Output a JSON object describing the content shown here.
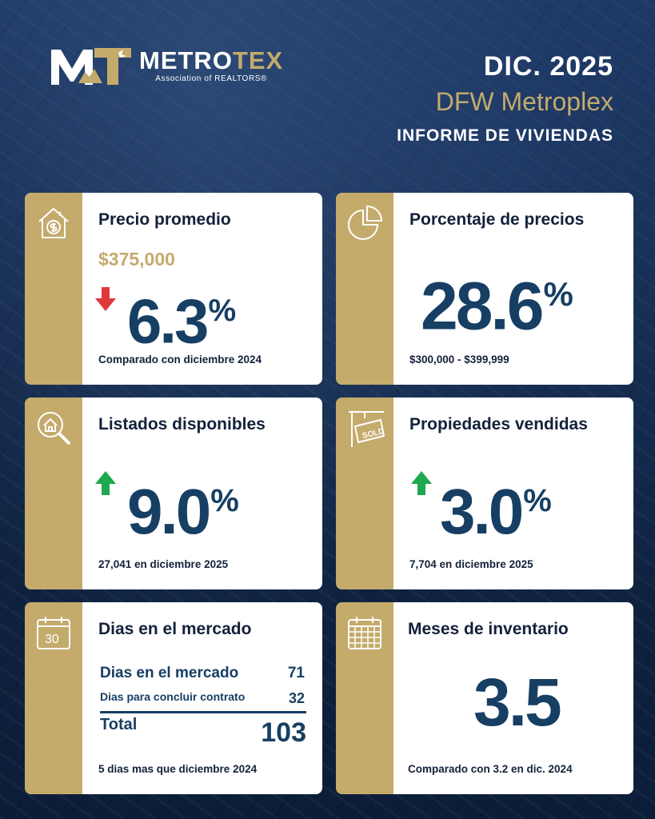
{
  "header": {
    "logo": {
      "mark": "MT",
      "name_a": "METRO",
      "name_b": "TEX",
      "sub": "Association of REALTORS®"
    },
    "date": "DIC. 2025",
    "region": "DFW Metroplex",
    "report": "INFORME DE VIVIENDAS"
  },
  "cards": {
    "avg_price": {
      "icon": "house-dollar-icon",
      "title": "Precio promedio",
      "price": "$375,000",
      "trend": "down",
      "value": "6.3",
      "unit": "%",
      "note": "Comparado con diciembre 2024"
    },
    "price_pct": {
      "icon": "pie-chart-icon",
      "title": "Porcentaje de precios",
      "value": "28.6",
      "unit": "%",
      "note": "$300,000 - $399,999"
    },
    "listings": {
      "icon": "magnifier-house-icon",
      "title": "Listados disponibles",
      "trend": "up",
      "value": "9.0",
      "unit": "%",
      "note": "27,041 en diciembre 2025"
    },
    "sold": {
      "icon": "sold-sign-icon",
      "sign_text": "SOLD",
      "title": "Propiedades vendidas",
      "trend": "up",
      "value": "3.0",
      "unit": "%",
      "note": "7,704 en diciembre 2025"
    },
    "dom": {
      "icon": "calendar-30-icon",
      "calendar_day": "30",
      "title": "Dias en el mercado",
      "row1_label": "Dias en el mercado",
      "row1_value": "71",
      "row2_label": "Dias para concluir contrato",
      "row2_value": "32",
      "total_label": "Total",
      "total_value": "103",
      "note": "5 dias mas que diciembre 2024"
    },
    "inventory": {
      "icon": "calendar-grid-icon",
      "title": "Meses de inventario",
      "value": "3.5",
      "note": "Comparado con 3.2 en dic. 2024"
    }
  },
  "colors": {
    "gold": "#c4ab6c",
    "navy": "#173f64",
    "down": "#e0393b",
    "up": "#1ea84f"
  }
}
